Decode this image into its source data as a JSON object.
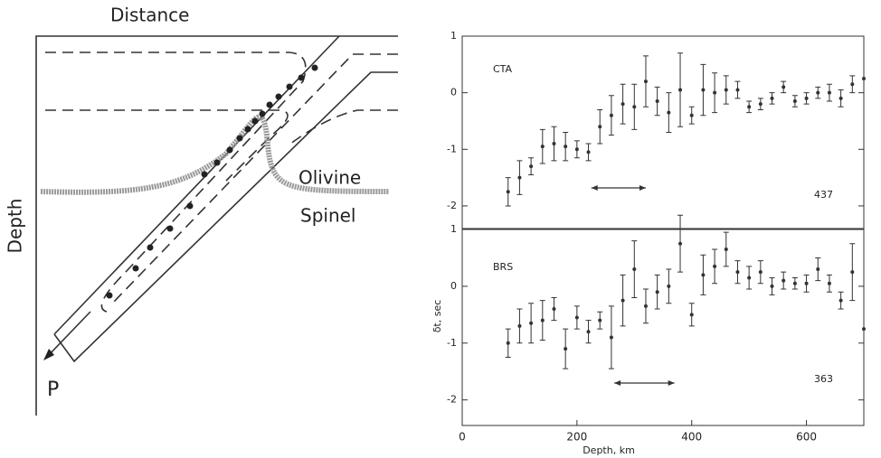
{
  "diagram": {
    "title": "Distance",
    "axis_label": "Depth",
    "phase_upper": "Olivine",
    "phase_lower": "Spinel",
    "arrow_label": "P"
  },
  "chart_data": [
    {
      "type": "errorbar",
      "label": "CTA",
      "count_label": "437",
      "xlim": [
        0,
        700
      ],
      "ylim": [
        -2.4,
        1
      ],
      "yticks": [
        1,
        0,
        -1,
        -2
      ],
      "range_arrow": [
        225,
        320
      ],
      "x": [
        80,
        100,
        120,
        140,
        160,
        180,
        200,
        220,
        240,
        260,
        280,
        300,
        320,
        340,
        360,
        380,
        400,
        420,
        440,
        460,
        480,
        500,
        520,
        540,
        560,
        580,
        600,
        620,
        640,
        660,
        680,
        700
      ],
      "values": [
        -1.75,
        -1.5,
        -1.3,
        -0.95,
        -0.9,
        -0.95,
        -1.0,
        -1.05,
        -0.6,
        -0.4,
        -0.2,
        -0.25,
        0.2,
        -0.15,
        -0.35,
        0.05,
        -0.4,
        0.05,
        0.0,
        0.05,
        0.05,
        -0.25,
        -0.2,
        -0.1,
        0.1,
        -0.15,
        -0.1,
        0.0,
        0.0,
        -0.1,
        0.15,
        0.25
      ],
      "errors": [
        0.25,
        0.3,
        0.15,
        0.3,
        0.3,
        0.25,
        0.15,
        0.15,
        0.3,
        0.35,
        0.35,
        0.4,
        0.45,
        0.25,
        0.35,
        0.65,
        0.15,
        0.45,
        0.35,
        0.25,
        0.15,
        0.1,
        0.1,
        0.1,
        0.1,
        0.1,
        0.1,
        0.1,
        0.15,
        0.15,
        0.15,
        null
      ]
    },
    {
      "type": "errorbar",
      "label": "BRS",
      "count_label": "363",
      "xlim": [
        0,
        700
      ],
      "ylim": [
        -2.45,
        1
      ],
      "yticks": [
        1,
        0,
        -1,
        -2
      ],
      "xticks": [
        0,
        200,
        400,
        600
      ],
      "xlabel": "Depth, km",
      "ylabel": "δt, sec",
      "range_arrow": [
        265,
        370
      ],
      "x": [
        80,
        100,
        120,
        140,
        160,
        180,
        200,
        220,
        240,
        260,
        280,
        300,
        320,
        340,
        360,
        380,
        400,
        420,
        440,
        460,
        480,
        500,
        520,
        540,
        560,
        580,
        600,
        620,
        640,
        660,
        680,
        700
      ],
      "values": [
        -1.0,
        -0.7,
        -0.65,
        -0.6,
        -0.4,
        -1.1,
        -0.55,
        -0.8,
        -0.6,
        -0.9,
        -0.25,
        0.3,
        -0.35,
        -0.1,
        0.0,
        0.75,
        -0.5,
        0.2,
        0.35,
        0.65,
        0.25,
        0.15,
        0.25,
        0.0,
        0.1,
        0.05,
        0.05,
        0.3,
        0.05,
        -0.25,
        0.25,
        -0.75
      ],
      "errors": [
        0.25,
        0.3,
        0.35,
        0.35,
        0.2,
        0.35,
        0.2,
        0.2,
        0.15,
        0.55,
        0.45,
        0.5,
        0.3,
        0.3,
        0.3,
        0.5,
        0.2,
        0.35,
        0.3,
        0.3,
        0.2,
        0.2,
        0.2,
        0.15,
        0.15,
        0.1,
        0.15,
        0.2,
        0.15,
        0.15,
        0.5,
        null
      ]
    }
  ]
}
